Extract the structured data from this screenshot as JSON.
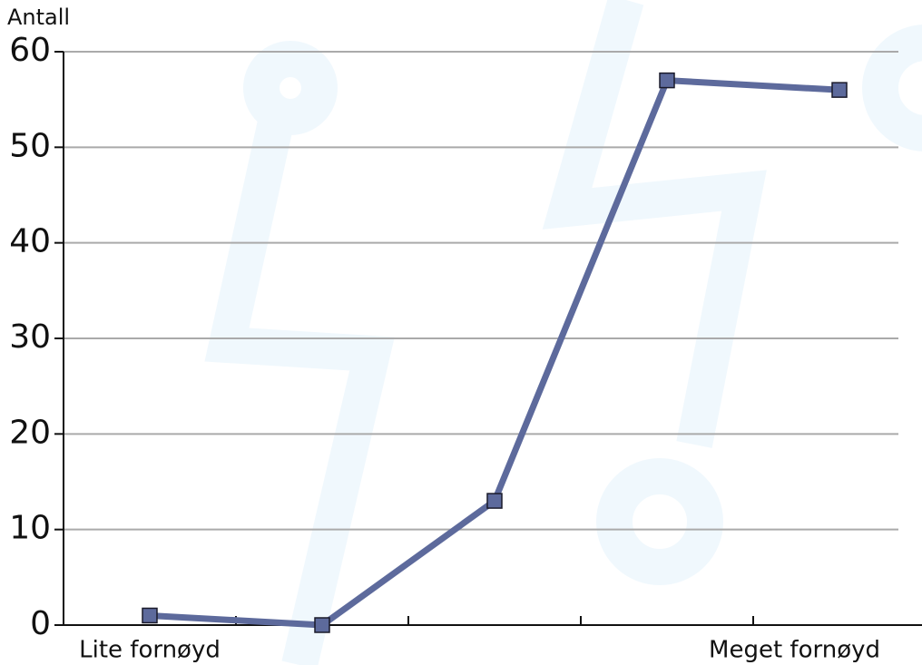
{
  "chart_data": {
    "type": "line",
    "y_label": "Antall",
    "categories": [
      "Lite fornøyd",
      null,
      null,
      null,
      "Meget fornøyd"
    ],
    "values": [
      1,
      0,
      13,
      57,
      56
    ],
    "color": "#5d6a9c",
    "ylim": [
      0,
      60
    ],
    "yticks": [
      0,
      10,
      20,
      30,
      40,
      50,
      60
    ],
    "grid": true
  }
}
